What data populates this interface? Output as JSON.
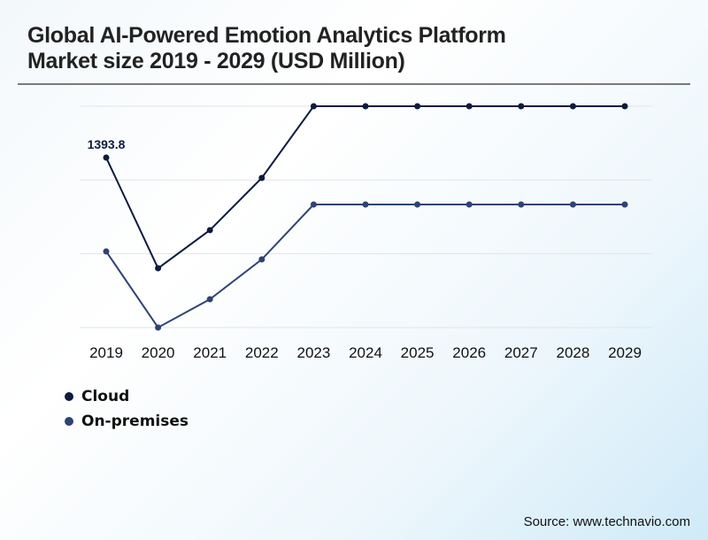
{
  "header": {
    "title_line1": "Global AI-Powered Emotion Analytics Platform",
    "title_line2": "Market size 2019 - 2029 (USD Million)"
  },
  "source": "Source: www.technavio.com",
  "chart_data": {
    "type": "line",
    "title": "Global AI-Powered Emotion Analytics Platform Market size 2019 - 2029 (USD Million)",
    "xlabel": "",
    "ylabel": "",
    "categories": [
      "2019",
      "2020",
      "2021",
      "2022",
      "2023",
      "2024",
      "2025",
      "2026",
      "2027",
      "2028",
      "2029"
    ],
    "ylim": [
      0,
      1815
    ],
    "grid": true,
    "legend_position": "bottom-left",
    "series": [
      {
        "name": "Cloud",
        "color": "#0d1b3e",
        "values": [
          1393.8,
          486,
          799,
          1227,
          1815,
          1815,
          1815,
          1815,
          1815,
          1815,
          1815
        ]
      },
      {
        "name": "On-premises",
        "color": "#2f4373",
        "values": [
          624,
          0,
          232,
          559,
          1009,
          1009,
          1009,
          1009,
          1009,
          1009,
          1009
        ]
      }
    ],
    "annotations": [
      {
        "series": "Cloud",
        "category": "2019",
        "text": "1393.8"
      }
    ]
  }
}
